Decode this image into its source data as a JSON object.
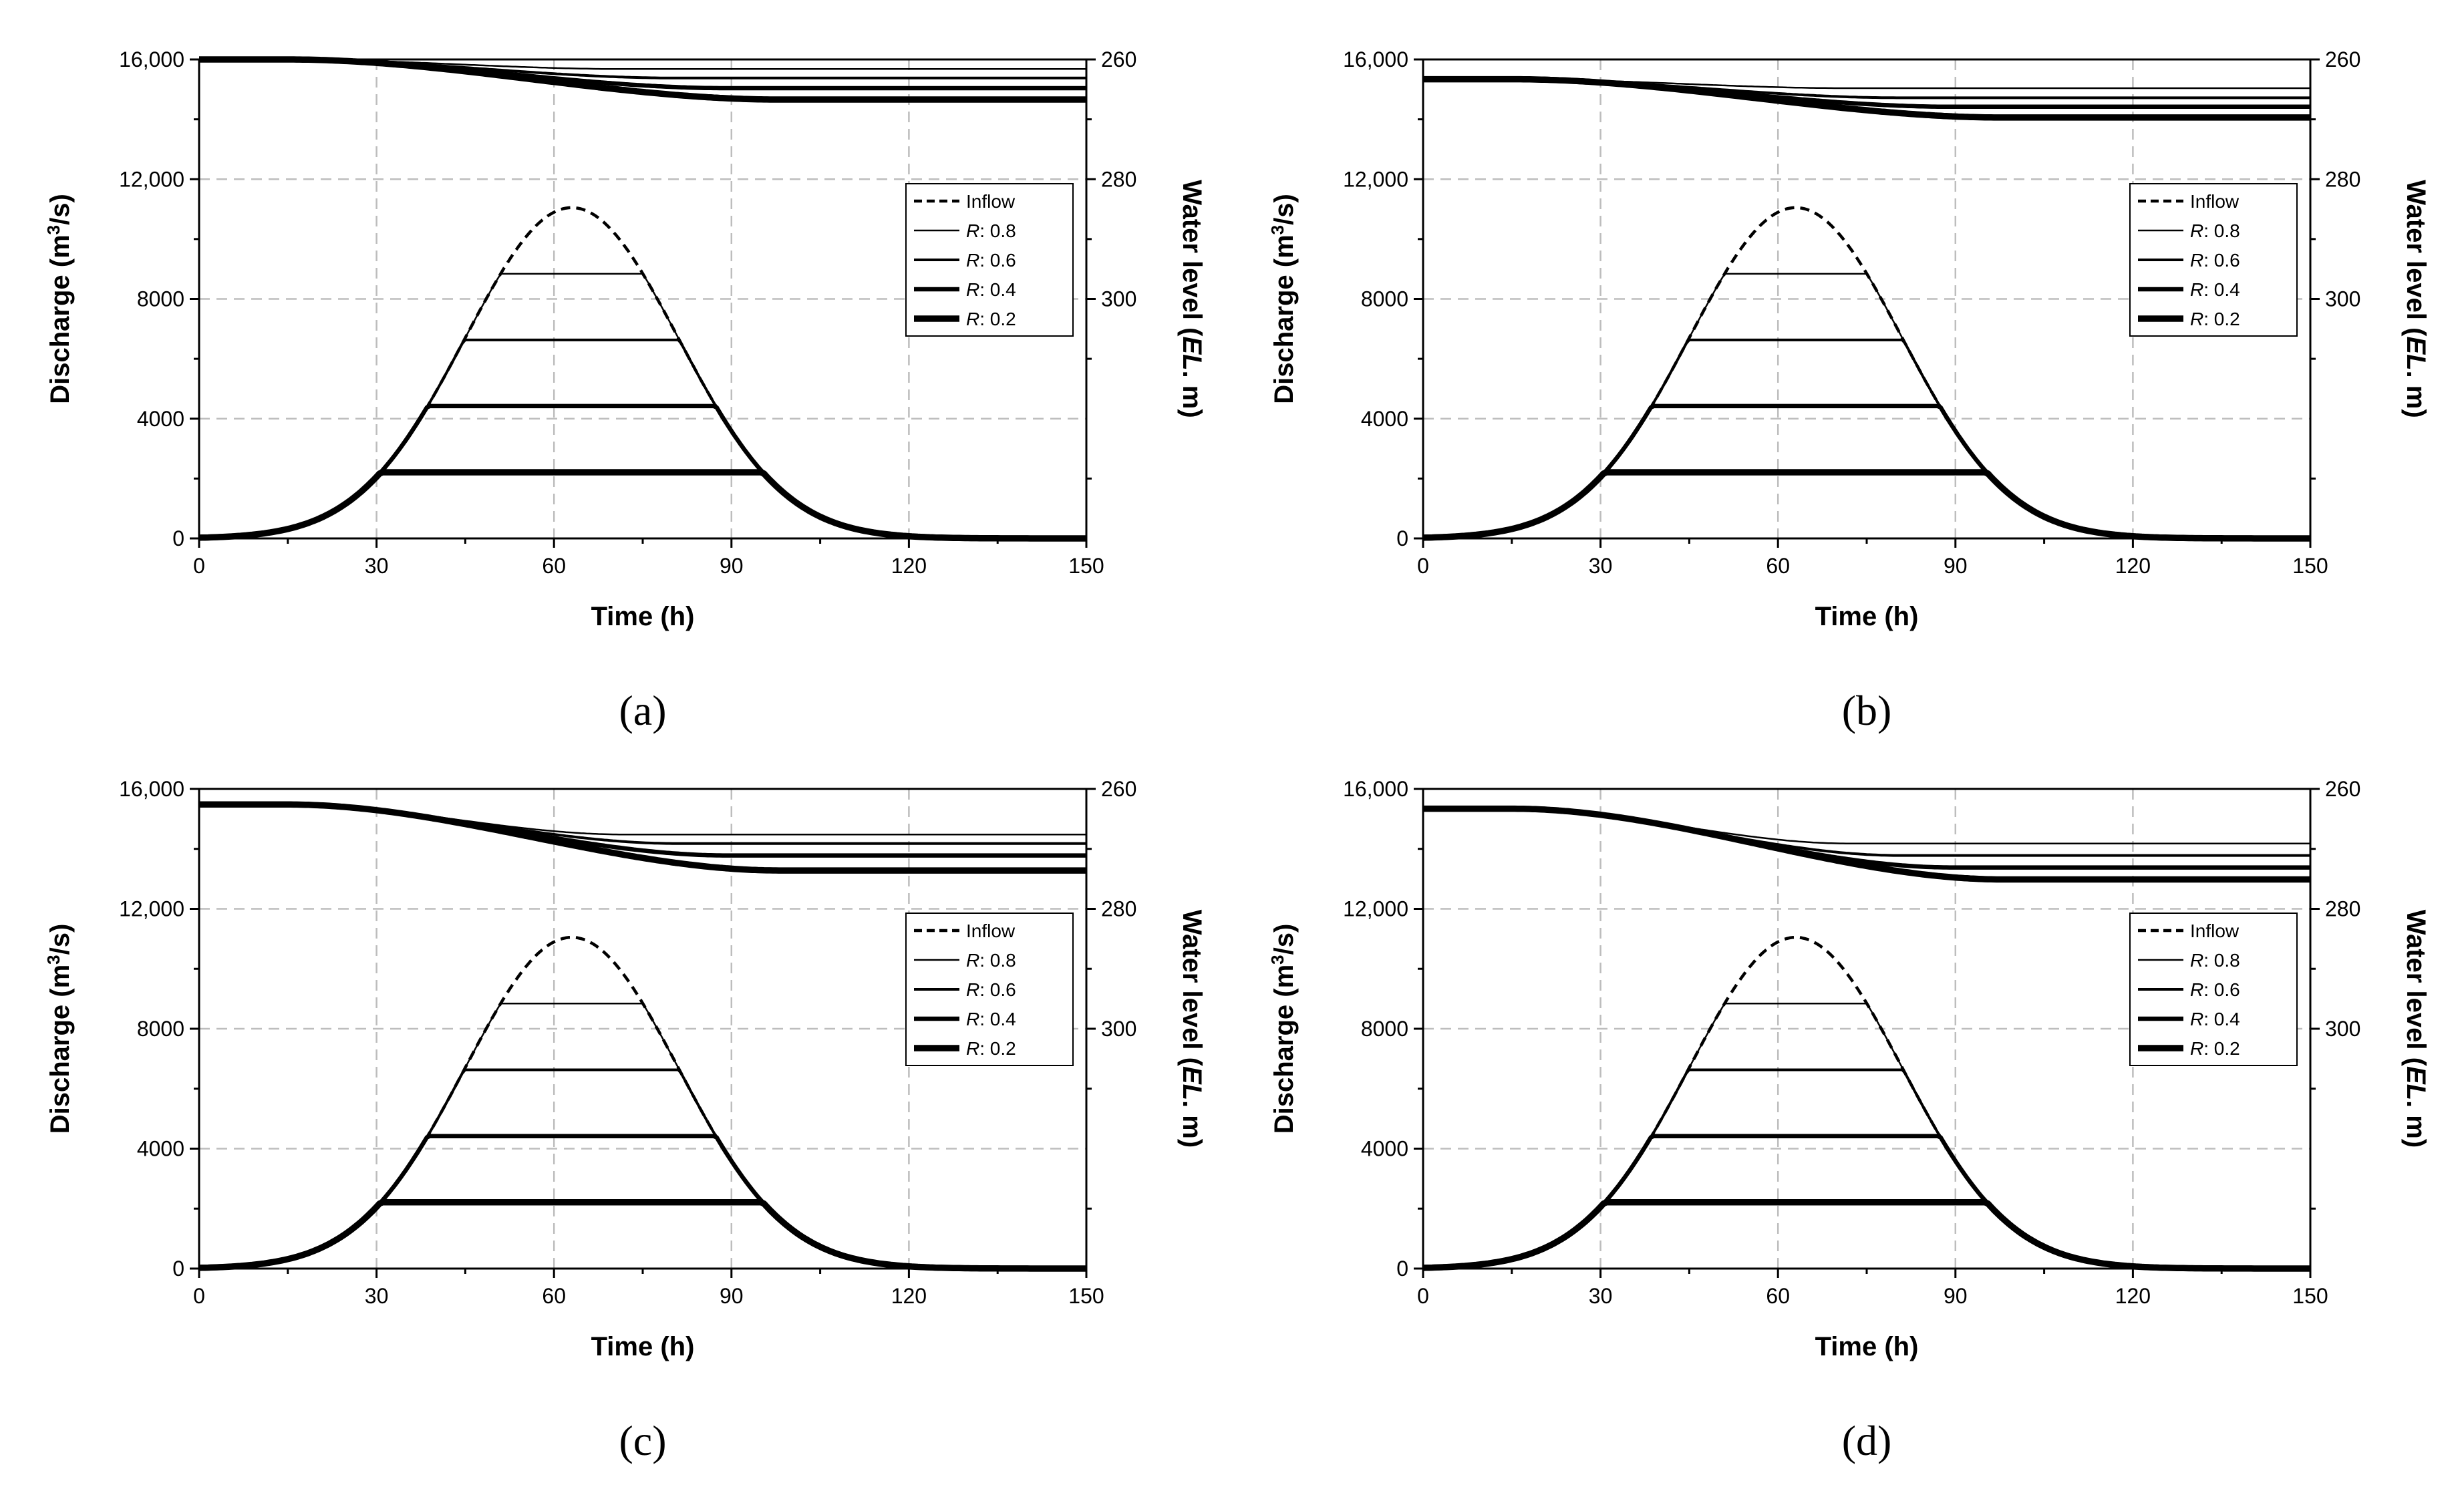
{
  "chart_data": [
    {
      "type": "line",
      "panel_label": "(a)",
      "xlabel": "Time (h)",
      "ylabel": "Discharge (m³/s)",
      "y2label": "Water level (EL. m)",
      "xlim": [
        0,
        150
      ],
      "ylim": [
        0,
        16000
      ],
      "y2lim": [
        260,
        340
      ],
      "x_ticks": [
        "0",
        "30",
        "60",
        "90",
        "120",
        "150"
      ],
      "y_ticks": [
        "0",
        "4000",
        "8000",
        "12,000",
        "16,000"
      ],
      "y2_ticks": [
        "260",
        "280",
        "300"
      ],
      "legend": [
        "Inflow",
        "R: 0.8",
        "R: 0.6",
        "R: 0.4",
        "R: 0.2"
      ],
      "legend_position": "right",
      "inflow": {
        "name": "Inflow",
        "peak": 11050,
        "peak_time": 63,
        "spread": 18
      },
      "outflow_series": [
        {
          "name": "R: 0.8",
          "ratio": 0.8
        },
        {
          "name": "R: 0.6",
          "ratio": 0.6
        },
        {
          "name": "R: 0.4",
          "ratio": 0.4
        },
        {
          "name": "R: 0.2",
          "ratio": 0.2
        }
      ],
      "water_level_series": [
        {
          "name": "R: 0.8",
          "start": 260,
          "end": 261.6
        },
        {
          "name": "R: 0.6",
          "start": 260,
          "end": 263.1
        },
        {
          "name": "R: 0.4",
          "start": 260,
          "end": 264.8
        },
        {
          "name": "R: 0.2",
          "start": 260,
          "end": 266.7
        }
      ]
    },
    {
      "type": "line",
      "panel_label": "(b)",
      "xlabel": "Time (h)",
      "ylabel": "Discharge (m³/s)",
      "y2label": "Water level (EL. m)",
      "xlim": [
        0,
        150
      ],
      "ylim": [
        0,
        16000
      ],
      "y2lim": [
        260,
        340
      ],
      "x_ticks": [
        "0",
        "30",
        "60",
        "90",
        "120",
        "150"
      ],
      "y_ticks": [
        "0",
        "4000",
        "8000",
        "12,000",
        "16,000"
      ],
      "y2_ticks": [
        "260",
        "280",
        "300"
      ],
      "legend": [
        "Inflow",
        "R: 0.8",
        "R: 0.6",
        "R: 0.4",
        "R: 0.2"
      ],
      "legend_position": "right",
      "inflow": {
        "name": "Inflow",
        "peak": 11050,
        "peak_time": 63,
        "spread": 18
      },
      "outflow_series": [
        {
          "name": "R: 0.8",
          "ratio": 0.8
        },
        {
          "name": "R: 0.6",
          "ratio": 0.6
        },
        {
          "name": "R: 0.4",
          "ratio": 0.4
        },
        {
          "name": "R: 0.2",
          "ratio": 0.2
        }
      ],
      "water_level_series": [
        {
          "name": "R: 0.8",
          "start": 263.3,
          "end": 264.8
        },
        {
          "name": "R: 0.6",
          "start": 263.3,
          "end": 266.4
        },
        {
          "name": "R: 0.4",
          "start": 263.3,
          "end": 267.9
        },
        {
          "name": "R: 0.2",
          "start": 263.3,
          "end": 269.7
        }
      ]
    },
    {
      "type": "line",
      "panel_label": "(c)",
      "xlabel": "Time (h)",
      "ylabel": "Discharge (m³/s)",
      "y2label": "Water level (EL. m)",
      "xlim": [
        0,
        150
      ],
      "ylim": [
        0,
        16000
      ],
      "y2lim": [
        260,
        340
      ],
      "x_ticks": [
        "0",
        "30",
        "60",
        "90",
        "120",
        "150"
      ],
      "y_ticks": [
        "0",
        "4000",
        "8000",
        "12,000",
        "16,000"
      ],
      "y2_ticks": [
        "260",
        "280",
        "300"
      ],
      "legend": [
        "Inflow",
        "R: 0.8",
        "R: 0.6",
        "R: 0.4",
        "R: 0.2"
      ],
      "legend_position": "right",
      "inflow": {
        "name": "Inflow",
        "peak": 11050,
        "peak_time": 63,
        "spread": 18
      },
      "outflow_series": [
        {
          "name": "R: 0.8",
          "ratio": 0.8
        },
        {
          "name": "R: 0.6",
          "ratio": 0.6
        },
        {
          "name": "R: 0.4",
          "ratio": 0.4
        },
        {
          "name": "R: 0.2",
          "ratio": 0.2
        }
      ],
      "water_level_series": [
        {
          "name": "R: 0.8",
          "start": 262.6,
          "end": 267.6
        },
        {
          "name": "R: 0.6",
          "start": 262.6,
          "end": 269.1
        },
        {
          "name": "R: 0.4",
          "start": 262.6,
          "end": 271.1
        },
        {
          "name": "R: 0.2",
          "start": 262.6,
          "end": 273.6
        }
      ]
    },
    {
      "type": "line",
      "panel_label": "(d)",
      "xlabel": "Time (h)",
      "ylabel": "Discharge (m³/s)",
      "y2label": "Water level (EL. m)",
      "xlim": [
        0,
        150
      ],
      "ylim": [
        0,
        16000
      ],
      "y2lim": [
        260,
        340
      ],
      "x_ticks": [
        "0",
        "30",
        "60",
        "90",
        "120",
        "150"
      ],
      "y_ticks": [
        "0",
        "4000",
        "8000",
        "12,000",
        "16,000"
      ],
      "y2_ticks": [
        "260",
        "280",
        "300"
      ],
      "legend": [
        "Inflow",
        "R: 0.8",
        "R: 0.6",
        "R: 0.4",
        "R: 0.2"
      ],
      "legend_position": "right",
      "inflow": {
        "name": "Inflow",
        "peak": 11050,
        "peak_time": 63,
        "spread": 18
      },
      "outflow_series": [
        {
          "name": "R: 0.8",
          "ratio": 0.8
        },
        {
          "name": "R: 0.6",
          "ratio": 0.6
        },
        {
          "name": "R: 0.4",
          "ratio": 0.4
        },
        {
          "name": "R: 0.2",
          "ratio": 0.2
        }
      ],
      "water_level_series": [
        {
          "name": "R: 0.8",
          "start": 263.3,
          "end": 269.1
        },
        {
          "name": "R: 0.6",
          "start": 263.3,
          "end": 271.1
        },
        {
          "name": "R: 0.4",
          "start": 263.3,
          "end": 273.1
        },
        {
          "name": "R: 0.2",
          "start": 263.3,
          "end": 275.1
        }
      ]
    }
  ]
}
